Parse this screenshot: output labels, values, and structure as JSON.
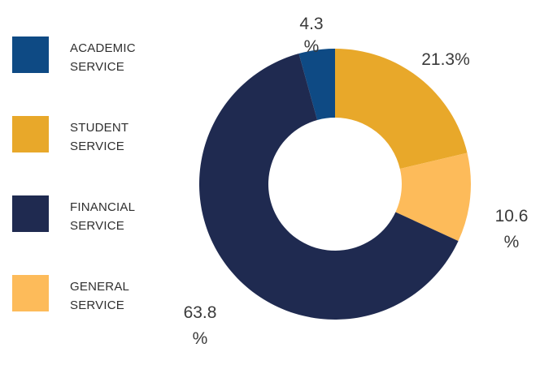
{
  "chart_data": {
    "type": "pie",
    "donut": true,
    "slices": [
      {
        "label": "ACADEMIC SERVICE",
        "value": 4.3,
        "pct_line1": "4.3",
        "pct_line2": "%",
        "color": "#0e4a84"
      },
      {
        "label": "STUDENT SERVICE",
        "value": 21.3,
        "pct_line1": "21.3%",
        "pct_line2": "",
        "color": "#e8a82a"
      },
      {
        "label": "GENERAL SERVICE",
        "value": 10.6,
        "pct_line1": "10.6",
        "pct_line2": "%",
        "color": "#fdbb5a"
      },
      {
        "label": "FINANCIAL SERVICE",
        "value": 63.8,
        "pct_line1": "63.8",
        "pct_line2": "%",
        "color": "#1f2a50"
      }
    ],
    "legend": [
      {
        "label": "ACADEMIC\nSERVICE",
        "color": "#0e4a84"
      },
      {
        "label": "STUDENT\nSERVICE",
        "color": "#e8a82a"
      },
      {
        "label": "FINANCIAL\nSERVICE",
        "color": "#1f2a50"
      },
      {
        "label": "GENERAL\nSERVICE",
        "color": "#fdbb5a"
      }
    ],
    "legend_position": "left"
  }
}
